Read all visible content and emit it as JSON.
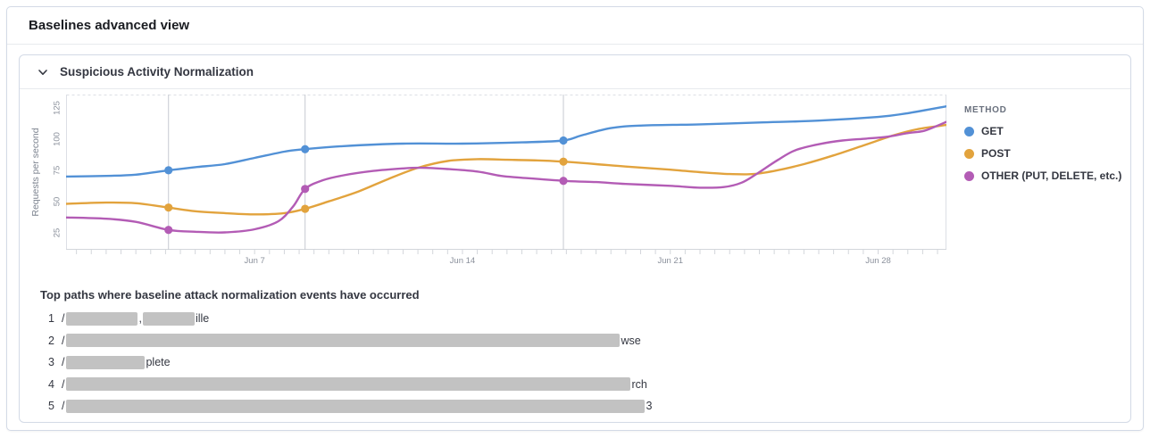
{
  "header": {
    "title": "Baselines advanced view"
  },
  "panel": {
    "title": "Suspicious Activity Normalization",
    "chevron_icon": "chevron-down"
  },
  "chart_data": {
    "type": "line",
    "title": "Suspicious Activity Normalization",
    "ylabel": "Requests per second",
    "yticks": [
      25,
      50,
      75,
      100,
      125
    ],
    "ylim": [
      11,
      136
    ],
    "xlim_days": [
      0.65,
      30.3
    ],
    "xticks": [
      {
        "day": 7,
        "label": "Jun 7"
      },
      {
        "day": 14,
        "label": "Jun 14"
      },
      {
        "day": 21,
        "label": "Jun 21"
      },
      {
        "day": 28,
        "label": "Jun 28"
      }
    ],
    "minor_tick_step": 0.5,
    "grid": false,
    "legend_position": "right",
    "legend_title": "METHOD",
    "event_marker_days": [
      4.1,
      8.7,
      17.4
    ],
    "colors": {
      "frame": "#dcdfe5",
      "event_line": "#c6cad1",
      "tick": "#d3d6db"
    },
    "series": [
      {
        "name": "GET",
        "color": "#5291d6",
        "points": [
          [
            0.65,
            70
          ],
          [
            2,
            70.5
          ],
          [
            3,
            71.5
          ],
          [
            4.1,
            75
          ],
          [
            5,
            77.5
          ],
          [
            6,
            80
          ],
          [
            7,
            85
          ],
          [
            8,
            90
          ],
          [
            8.7,
            92
          ],
          [
            10,
            94.5
          ],
          [
            12,
            96.5
          ],
          [
            14,
            96.5
          ],
          [
            16,
            97.5
          ],
          [
            17.4,
            99
          ],
          [
            18,
            103
          ],
          [
            19,
            109
          ],
          [
            20,
            111
          ],
          [
            22,
            112
          ],
          [
            24,
            113.5
          ],
          [
            26,
            115
          ],
          [
            28,
            118
          ],
          [
            29,
            121
          ],
          [
            30.3,
            126.5
          ]
        ]
      },
      {
        "name": "POST",
        "color": "#e2a33d",
        "points": [
          [
            0.65,
            48
          ],
          [
            2,
            49
          ],
          [
            3,
            48.5
          ],
          [
            4.1,
            45
          ],
          [
            5,
            42
          ],
          [
            6,
            40.5
          ],
          [
            7,
            39.5
          ],
          [
            8,
            40.5
          ],
          [
            8.7,
            44
          ],
          [
            9.5,
            50
          ],
          [
            10.5,
            58
          ],
          [
            11.5,
            68
          ],
          [
            12.5,
            77
          ],
          [
            13.5,
            82.5
          ],
          [
            14.5,
            84
          ],
          [
            15.5,
            83.5
          ],
          [
            16.5,
            83
          ],
          [
            17.4,
            82
          ],
          [
            18.5,
            80
          ],
          [
            19.5,
            78
          ],
          [
            21,
            75.5
          ],
          [
            22,
            73.5
          ],
          [
            23,
            72
          ],
          [
            23.8,
            72
          ],
          [
            24.6,
            75
          ],
          [
            25.5,
            80
          ],
          [
            26.5,
            87
          ],
          [
            27.5,
            95
          ],
          [
            28.5,
            103
          ],
          [
            29.3,
            108
          ],
          [
            30.3,
            111.5
          ]
        ]
      },
      {
        "name": "OTHER (PUT, DELETE, etc.)",
        "color": "#b35cb5",
        "points": [
          [
            0.65,
            37
          ],
          [
            2,
            36
          ],
          [
            3,
            33.5
          ],
          [
            4.1,
            27
          ],
          [
            5,
            25.5
          ],
          [
            6,
            25
          ],
          [
            7,
            27.5
          ],
          [
            7.8,
            34
          ],
          [
            8.3,
            46
          ],
          [
            8.7,
            60
          ],
          [
            9.3,
            67
          ],
          [
            10,
            71
          ],
          [
            11,
            74.5
          ],
          [
            12,
            76.5
          ],
          [
            12.6,
            77
          ],
          [
            13.5,
            76
          ],
          [
            14.5,
            74
          ],
          [
            15.3,
            70.5
          ],
          [
            16,
            69
          ],
          [
            17.4,
            66.5
          ],
          [
            18.5,
            65.5
          ],
          [
            19.5,
            64
          ],
          [
            21,
            62.5
          ],
          [
            22,
            61
          ],
          [
            22.8,
            61.5
          ],
          [
            23.4,
            65
          ],
          [
            23.9,
            72
          ],
          [
            24.6,
            83
          ],
          [
            25.2,
            91
          ],
          [
            26,
            96
          ],
          [
            26.8,
            99
          ],
          [
            27.6,
            100.5
          ],
          [
            28.3,
            102
          ],
          [
            29,
            105
          ],
          [
            29.5,
            106.5
          ],
          [
            29.9,
            110
          ],
          [
            30.3,
            114
          ]
        ]
      }
    ]
  },
  "top_paths": {
    "heading": "Top paths where baseline attack normalization events have occurred",
    "rows": [
      {
        "rank": "1",
        "prefix": "/",
        "parts": [
          {
            "redacted": 80
          },
          {
            "text": ","
          },
          {
            "redacted": 58
          },
          {
            "text": "ille"
          }
        ]
      },
      {
        "rank": "2",
        "prefix": "/",
        "parts": [
          {
            "redacted": 620
          },
          {
            "text": "wse"
          }
        ]
      },
      {
        "rank": "3",
        "prefix": "/",
        "parts": [
          {
            "redacted": 88
          },
          {
            "text": "plete"
          }
        ]
      },
      {
        "rank": "4",
        "prefix": "/",
        "parts": [
          {
            "redacted": 632
          },
          {
            "text": "rch"
          }
        ]
      },
      {
        "rank": "5",
        "prefix": "/",
        "parts": [
          {
            "redacted": 648
          },
          {
            "text": "3"
          }
        ]
      }
    ]
  }
}
